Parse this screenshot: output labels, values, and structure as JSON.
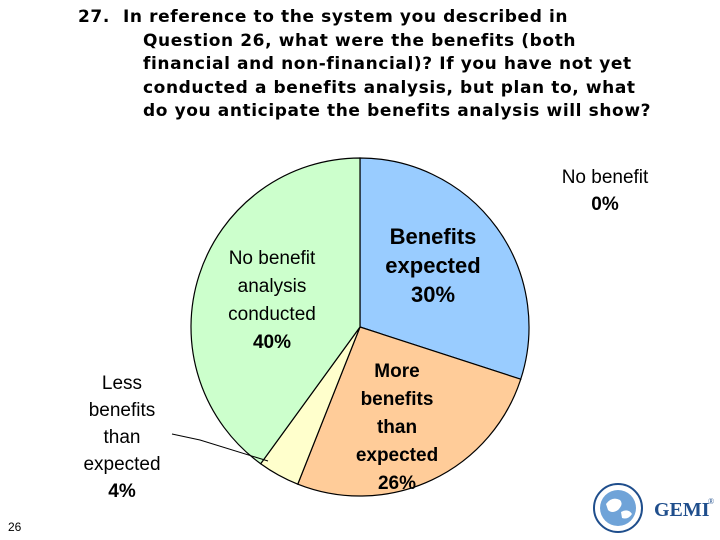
{
  "question": {
    "number": "27.",
    "lines": [
      "In reference to the system you described in",
      "Question 26, what were the benefits (both",
      "financial and non-financial)? If you have not yet",
      "conducted a benefits analysis, but plan to, what",
      "do you anticipate the benefits analysis will show?"
    ]
  },
  "chart_data": {
    "type": "pie",
    "slices": [
      {
        "label": "No benefit",
        "value": 0,
        "label_lines": [
          "No benefit",
          "0%"
        ],
        "color": "#99ccff"
      },
      {
        "label": "Benefits expected",
        "value": 30,
        "label_lines": [
          "Benefits",
          "expected",
          "30%"
        ],
        "color": "#99ccff"
      },
      {
        "label": "More benefits than expected",
        "value": 26,
        "label_lines": [
          "More",
          "benefits",
          "than",
          "expected",
          "26%"
        ],
        "color": "#ffcc99"
      },
      {
        "label": "Less benefits than expected",
        "value": 4,
        "label_lines": [
          "Less",
          "benefits",
          "than",
          "expected",
          "4%"
        ],
        "color": "#ffffcc"
      },
      {
        "label": "No benefit analysis conducted",
        "value": 40,
        "label_lines": [
          "No benefit",
          "analysis",
          "conducted",
          "40%"
        ],
        "color": "#ccffcc"
      }
    ]
  },
  "slide_number": "26",
  "logo": {
    "text": "GEMI",
    "mark": "®"
  }
}
